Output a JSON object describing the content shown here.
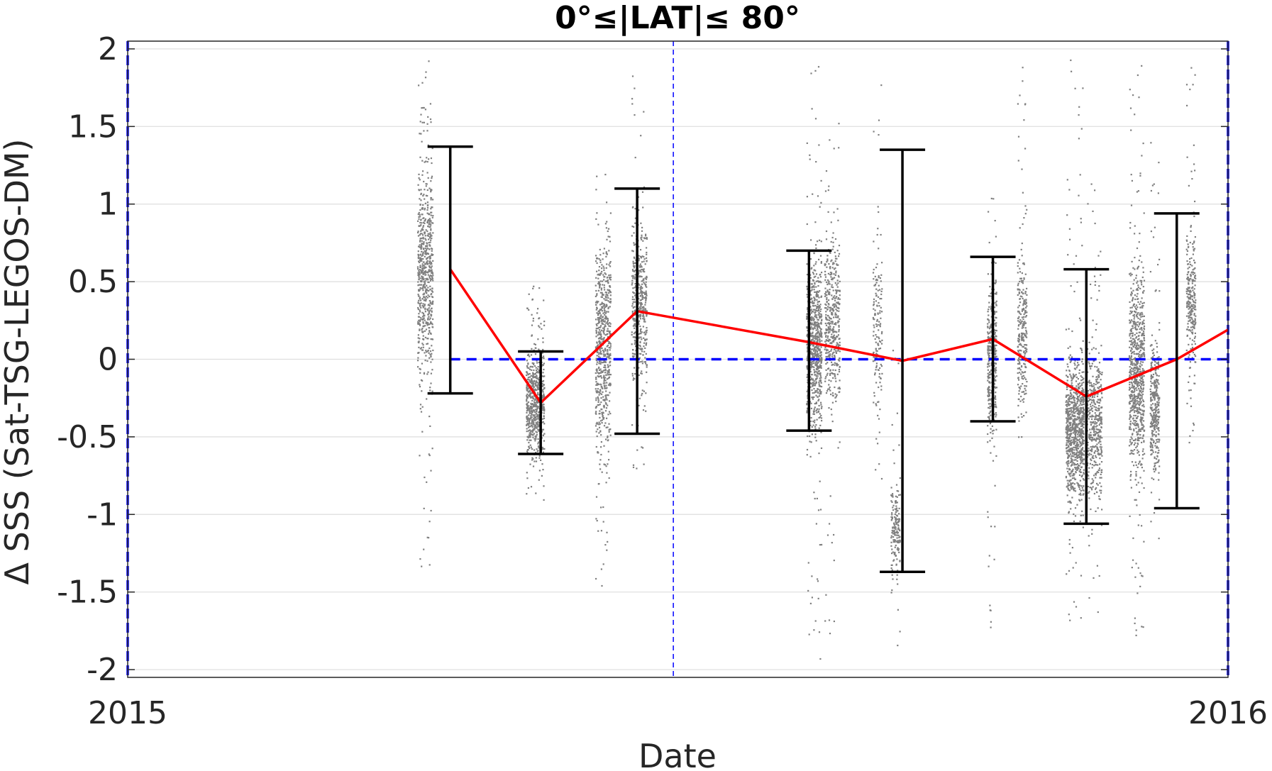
{
  "chart_data": {
    "type": "scatter",
    "title": "0°≤|LAT|≤ 80°",
    "xlabel": "Date",
    "ylabel": "Δ SSS (Sat-TSG-LEGOS-DM)",
    "x_tick_labels": [
      "2015",
      "2016"
    ],
    "y_ticks": [
      2,
      1.5,
      1,
      0.5,
      0,
      -0.5,
      -1,
      -1.5,
      -2
    ],
    "y_tick_labels": [
      "2",
      "1.5",
      "1",
      "0.5",
      "0",
      "-0.5",
      "-1",
      "-1.5",
      "-2"
    ],
    "xlim": [
      "2015-01-01",
      "2016-01-01"
    ],
    "ylim": [
      -2.05,
      2.05
    ],
    "grid": true,
    "legend": "none",
    "vertical_markers": [
      {
        "x": "2015-01-01",
        "style": "dashed",
        "color": "#0000ff"
      },
      {
        "x": "2015-07-01",
        "style": "dashed",
        "color": "#0000ff"
      },
      {
        "x": "2016-01-01",
        "style": "dashed",
        "color": "#0000ff"
      }
    ],
    "reference_line": {
      "y": 0,
      "x_start": "2015-04-18",
      "x_end": "2016-01-01",
      "style": "dashed",
      "color": "#0000ff"
    },
    "series": [
      {
        "type": "line",
        "color": "#ff0000",
        "x": [
          "2015-04-18",
          "2015-05-18",
          "2015-06-19",
          "2015-08-15",
          "2015-09-15",
          "2015-10-15",
          "2015-11-15",
          "2015-12-15",
          "2016-01-01"
        ],
        "y": [
          0.58,
          -0.28,
          0.31,
          0.11,
          -0.01,
          0.13,
          -0.24,
          0.0,
          0.19
        ]
      },
      {
        "type": "errorbar",
        "color": "#000000",
        "x": [
          "2015-04-18",
          "2015-05-18",
          "2015-06-19",
          "2015-08-15",
          "2015-09-15",
          "2015-10-15",
          "2015-11-15",
          "2015-12-15"
        ],
        "low": [
          -0.22,
          -0.61,
          -0.48,
          -0.46,
          -1.37,
          -0.4,
          -1.06,
          -0.96
        ],
        "high": [
          1.37,
          0.05,
          1.1,
          0.7,
          1.35,
          0.66,
          0.58,
          0.94
        ]
      },
      {
        "type": "scatter",
        "color": "#808080",
        "clusters": [
          {
            "x_start": "2015-04-07",
            "x_end": "2015-04-12",
            "center": 0.55,
            "spread": 0.6,
            "ymin": -1.33,
            "ymax": 2.0,
            "count": 700
          },
          {
            "x_start": "2015-05-13",
            "x_end": "2015-05-19",
            "center": -0.28,
            "spread": 0.28,
            "ymin": -0.93,
            "ymax": 0.5,
            "count": 650
          },
          {
            "x_start": "2015-06-05",
            "x_end": "2015-06-10",
            "center": 0.1,
            "spread": 0.55,
            "ymin": -1.46,
            "ymax": 1.2,
            "count": 650
          },
          {
            "x_start": "2015-06-17",
            "x_end": "2015-06-22",
            "center": 0.35,
            "spread": 0.45,
            "ymin": -0.76,
            "ymax": 1.85,
            "count": 450
          },
          {
            "x_start": "2015-08-14",
            "x_end": "2015-08-19",
            "center": 0.1,
            "spread": 0.45,
            "ymin": -1.95,
            "ymax": 2.0,
            "count": 800
          },
          {
            "x_start": "2015-08-20",
            "x_end": "2015-08-25",
            "center": 0.25,
            "spread": 0.45,
            "ymin": -2.0,
            "ymax": 1.55,
            "count": 450
          },
          {
            "x_start": "2015-09-05",
            "x_end": "2015-09-08",
            "center": 0.2,
            "spread": 0.5,
            "ymin": -0.8,
            "ymax": 1.9,
            "count": 150
          },
          {
            "x_start": "2015-09-11",
            "x_end": "2015-09-14",
            "center": -1.1,
            "spread": 0.25,
            "ymin": -1.9,
            "ymax": 0.1,
            "count": 180
          },
          {
            "x_start": "2015-10-13",
            "x_end": "2015-10-16",
            "center": 0.0,
            "spread": 0.45,
            "ymin": -1.8,
            "ymax": 1.05,
            "count": 380
          },
          {
            "x_start": "2015-10-23",
            "x_end": "2015-10-26",
            "center": 0.15,
            "spread": 0.45,
            "ymin": -0.55,
            "ymax": 1.9,
            "count": 280
          },
          {
            "x_start": "2015-11-08",
            "x_end": "2015-11-14",
            "center": -0.45,
            "spread": 0.4,
            "ymin": -1.75,
            "ymax": 1.95,
            "count": 900
          },
          {
            "x_start": "2015-11-15",
            "x_end": "2015-11-20",
            "center": -0.4,
            "spread": 0.4,
            "ymin": -1.65,
            "ymax": 1.35,
            "count": 450
          },
          {
            "x_start": "2015-11-29",
            "x_end": "2015-12-04",
            "center": -0.1,
            "spread": 0.55,
            "ymin": -1.8,
            "ymax": 1.9,
            "count": 800
          },
          {
            "x_start": "2015-12-06",
            "x_end": "2015-12-09",
            "center": -0.3,
            "spread": 0.4,
            "ymin": -1.15,
            "ymax": 1.45,
            "count": 350
          },
          {
            "x_start": "2015-12-18",
            "x_end": "2015-12-21",
            "center": 0.35,
            "spread": 0.4,
            "ymin": -0.55,
            "ymax": 2.0,
            "count": 280
          }
        ]
      }
    ]
  }
}
